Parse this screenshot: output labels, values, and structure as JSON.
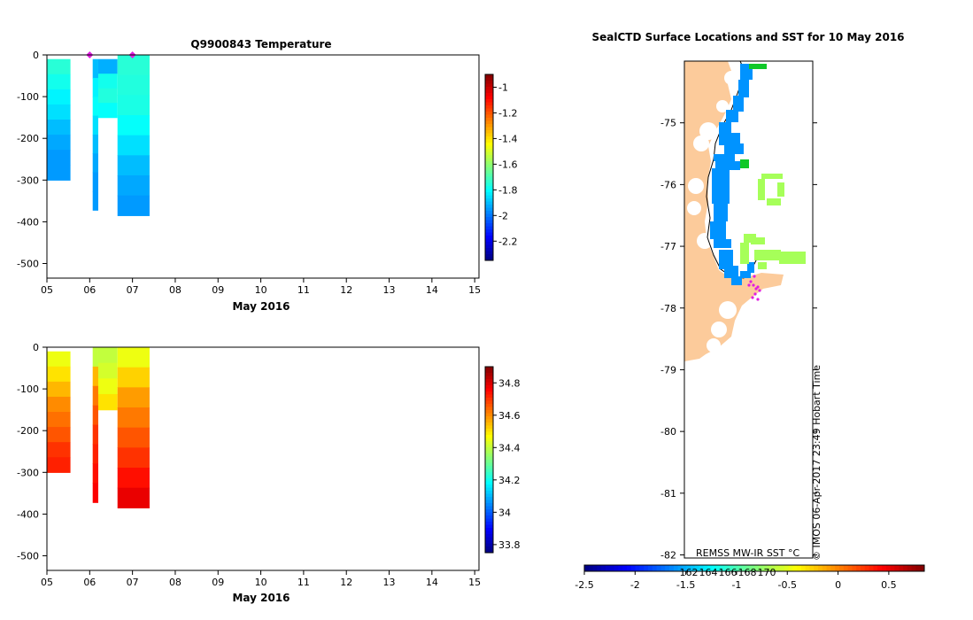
{
  "chart_data": [
    {
      "type": "heatmap",
      "title": "Q9900843  Temperature",
      "xlabel": "May 2016",
      "ylabel": "",
      "x_tick_labels": [
        "05",
        "06",
        "07",
        "08",
        "09",
        "10",
        "11",
        "12",
        "13",
        "14",
        "15"
      ],
      "xlim": [
        5,
        15.1
      ],
      "y_ticks": [
        0,
        -100,
        -200,
        -300,
        -400,
        -500
      ],
      "ylim": [
        -535,
        0
      ],
      "colorbar_ticks": [
        -1,
        -1.2,
        -1.4,
        -1.6,
        -1.8,
        -2,
        -2.2
      ],
      "colorbar_range": [
        -2.35,
        -0.9
      ],
      "profiles": [
        {
          "x0": 5.0,
          "x1": 5.55,
          "top": -10,
          "bottom": -300,
          "values": [
            -1.75,
            -1.78,
            -1.82,
            -1.85,
            -1.9,
            -1.93,
            -1.95,
            -1.95
          ]
        },
        {
          "x0": 6.07,
          "x1": 6.2,
          "top": -10,
          "bottom": -372,
          "values": [
            -1.9,
            -1.82,
            -1.8,
            -1.85,
            -1.9,
            -1.93,
            -1.95,
            -1.95
          ]
        },
        {
          "x0": 6.2,
          "x1": 6.65,
          "top": -10,
          "bottom": -150,
          "values": [
            -1.92,
            -1.78,
            -1.76,
            -1.8
          ]
        },
        {
          "x0": 6.65,
          "x1": 7.4,
          "top": 0,
          "bottom": -385,
          "values": [
            -1.75,
            -1.76,
            -1.77,
            -1.8,
            -1.85,
            -1.9,
            -1.93,
            -1.95
          ]
        }
      ],
      "markers": [
        {
          "x": 7.0,
          "y": 0
        },
        {
          "x": 6.0,
          "y": 0
        }
      ]
    },
    {
      "type": "heatmap",
      "title": "",
      "xlabel": "May 2016",
      "ylabel": "",
      "x_tick_labels": [
        "05",
        "06",
        "07",
        "08",
        "09",
        "10",
        "11",
        "12",
        "13",
        "14",
        "15"
      ],
      "xlim": [
        5,
        15.1
      ],
      "y_ticks": [
        0,
        -100,
        -200,
        -300,
        -400,
        -500
      ],
      "ylim": [
        -535,
        0
      ],
      "colorbar_ticks": [
        34.8,
        34.6,
        34.4,
        34.2,
        34,
        33.8
      ],
      "colorbar_range": [
        33.75,
        34.9
      ],
      "profiles": [
        {
          "x0": 5.0,
          "x1": 5.55,
          "top": -10,
          "bottom": -300,
          "values": [
            34.45,
            34.5,
            34.55,
            34.6,
            34.63,
            34.66,
            34.7,
            34.72
          ]
        },
        {
          "x0": 6.07,
          "x1": 6.2,
          "top": 0,
          "bottom": -372,
          "values": [
            34.4,
            34.55,
            34.62,
            34.66,
            34.7,
            34.72,
            34.74,
            34.76
          ]
        },
        {
          "x0": 6.2,
          "x1": 6.65,
          "top": 0,
          "bottom": -150,
          "values": [
            34.4,
            34.42,
            34.45,
            34.5
          ]
        },
        {
          "x0": 6.65,
          "x1": 7.4,
          "top": 0,
          "bottom": -385,
          "values": [
            34.45,
            34.52,
            34.58,
            34.62,
            34.66,
            34.7,
            34.74,
            34.78
          ]
        }
      ]
    },
    {
      "type": "scatter",
      "title": "SealCTD Surface Locations and SST for 10 May 2016",
      "y_ticks": [
        -75,
        -76,
        -77,
        -78,
        -79,
        -80,
        -81,
        -82
      ],
      "ylim": [
        -82.05,
        -74.0
      ],
      "colorbar_ticks": [
        -2.5,
        -2,
        -1.5,
        -1,
        -0.5,
        0,
        0.5
      ],
      "colorbar_range": [
        -2.5,
        0.85
      ],
      "colorbar_label": "REMSS MW-IR SST °C",
      "contour_labels": [
        "162",
        "164",
        "166",
        "168",
        "170"
      ],
      "credit": "© IMOS 06-Apr-2017 23:49 Hobart Time"
    }
  ]
}
